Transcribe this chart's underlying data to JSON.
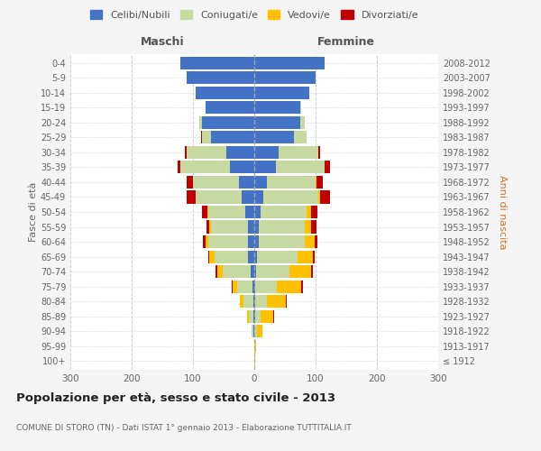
{
  "age_groups": [
    "100+",
    "95-99",
    "90-94",
    "85-89",
    "80-84",
    "75-79",
    "70-74",
    "65-69",
    "60-64",
    "55-59",
    "50-54",
    "45-49",
    "40-44",
    "35-39",
    "30-34",
    "25-29",
    "20-24",
    "15-19",
    "10-14",
    "5-9",
    "0-4"
  ],
  "birth_years": [
    "≤ 1912",
    "1913-1917",
    "1918-1922",
    "1923-1927",
    "1928-1932",
    "1933-1937",
    "1938-1942",
    "1943-1947",
    "1948-1952",
    "1953-1957",
    "1958-1962",
    "1963-1967",
    "1968-1972",
    "1973-1977",
    "1978-1982",
    "1983-1987",
    "1988-1992",
    "1993-1997",
    "1998-2002",
    "2003-2007",
    "2008-2012"
  ],
  "colors": {
    "celibe": "#4472c4",
    "coniugato": "#c5d9a0",
    "vedovo": "#ffc000",
    "divorziato": "#c00000"
  },
  "maschi": {
    "celibe": [
      0,
      0,
      1,
      1,
      2,
      3,
      6,
      10,
      10,
      10,
      15,
      20,
      25,
      40,
      45,
      70,
      85,
      80,
      95,
      110,
      120
    ],
    "coniugato": [
      0,
      0,
      3,
      8,
      16,
      25,
      45,
      55,
      65,
      60,
      60,
      75,
      75,
      80,
      65,
      15,
      5,
      0,
      0,
      0,
      0
    ],
    "vedovo": [
      0,
      0,
      1,
      3,
      5,
      8,
      10,
      8,
      5,
      3,
      2,
      1,
      0,
      0,
      0,
      0,
      0,
      0,
      0,
      0,
      0
    ],
    "divorziato": [
      0,
      0,
      0,
      0,
      1,
      1,
      2,
      2,
      4,
      5,
      8,
      15,
      10,
      5,
      3,
      2,
      0,
      0,
      0,
      0,
      0
    ]
  },
  "femmine": {
    "nubile": [
      0,
      0,
      0,
      1,
      1,
      2,
      3,
      5,
      8,
      8,
      10,
      15,
      20,
      35,
      40,
      65,
      75,
      75,
      90,
      100,
      115
    ],
    "coniugata": [
      0,
      1,
      5,
      10,
      20,
      35,
      55,
      65,
      75,
      75,
      75,
      90,
      80,
      80,
      65,
      20,
      8,
      1,
      0,
      0,
      0
    ],
    "vedova": [
      1,
      2,
      8,
      20,
      30,
      40,
      35,
      25,
      15,
      10,
      8,
      3,
      2,
      0,
      0,
      0,
      0,
      0,
      0,
      0,
      0
    ],
    "divorziata": [
      0,
      0,
      0,
      1,
      2,
      2,
      3,
      3,
      5,
      8,
      10,
      15,
      10,
      8,
      3,
      1,
      0,
      0,
      0,
      0,
      0
    ]
  },
  "xlim": 300,
  "title": "Popolazione per età, sesso e stato civile - 2013",
  "subtitle": "COMUNE DI STORO (TN) - Dati ISTAT 1° gennaio 2013 - Elaborazione TUTTITALIA.IT",
  "ylabel_left": "Fasce di età",
  "ylabel_right": "Anni di nascita",
  "xlabel_maschi": "Maschi",
  "xlabel_femmine": "Femmine",
  "legend_labels": [
    "Celibi/Nubili",
    "Coniugati/e",
    "Vedovi/e",
    "Divorziati/e"
  ],
  "bg_color": "#f5f5f5",
  "plot_bg": "#ffffff",
  "grid_color": "#cccccc"
}
